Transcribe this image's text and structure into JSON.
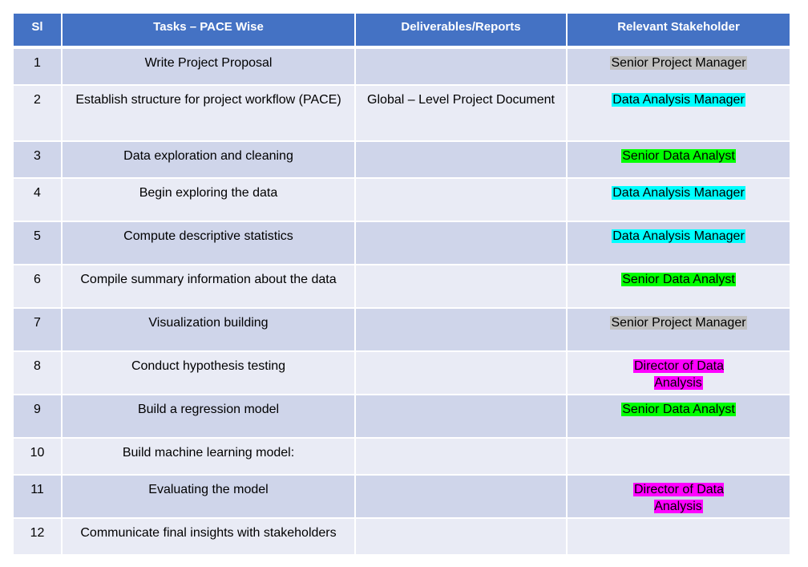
{
  "table": {
    "headers": [
      "Sl",
      "Tasks – PACE Wise",
      "Deliverables/Reports",
      "Relevant Stakeholder"
    ],
    "rows": [
      {
        "sl": "1",
        "task": "Write Project Proposal",
        "deliverable": "",
        "stakeholder": "Senior Project Manager",
        "color": "#c0c0c0"
      },
      {
        "sl": "2",
        "task": "Establish structure for project workflow (PACE)",
        "deliverable": "Global – Level Project Document",
        "stakeholder": "Data Analysis Manager",
        "color": "#00ffff"
      },
      {
        "sl": "3",
        "task": "Data exploration and cleaning",
        "deliverable": "",
        "stakeholder": "Senior Data Analyst",
        "color": "#00ff00"
      },
      {
        "sl": "4",
        "task": "Begin exploring the data",
        "deliverable": "",
        "stakeholder": "Data Analysis Manager",
        "color": "#00ffff"
      },
      {
        "sl": "5",
        "task": "Compute descriptive statistics",
        "deliverable": "",
        "stakeholder": "Data Analysis Manager",
        "color": "#00ffff"
      },
      {
        "sl": "6",
        "task": "Compile summary information about the data",
        "deliverable": "",
        "stakeholder": "Senior Data Analyst",
        "color": "#00ff00"
      },
      {
        "sl": "7",
        "task": "Visualization building",
        "deliverable": "",
        "stakeholder": "Senior Project Manager",
        "color": "#c0c0c0"
      },
      {
        "sl": "8",
        "task": "Conduct hypothesis testing",
        "deliverable": "",
        "stakeholder": "Director of Data Analysis",
        "color": "#ff00ff"
      },
      {
        "sl": "9",
        "task": "Build a regression model",
        "deliverable": "",
        "stakeholder": "Senior Data Analyst",
        "color": "#00ff00"
      },
      {
        "sl": "10",
        "task": "Build machine learning model:",
        "deliverable": "",
        "stakeholder": "",
        "color": ""
      },
      {
        "sl": "11",
        "task": "Evaluating the model",
        "deliverable": "",
        "stakeholder": "Director of Data Analysis",
        "color": "#ff00ff"
      },
      {
        "sl": "12",
        "task": "Communicate final insights with stakeholders",
        "deliverable": "",
        "stakeholder": "",
        "color": ""
      }
    ]
  }
}
